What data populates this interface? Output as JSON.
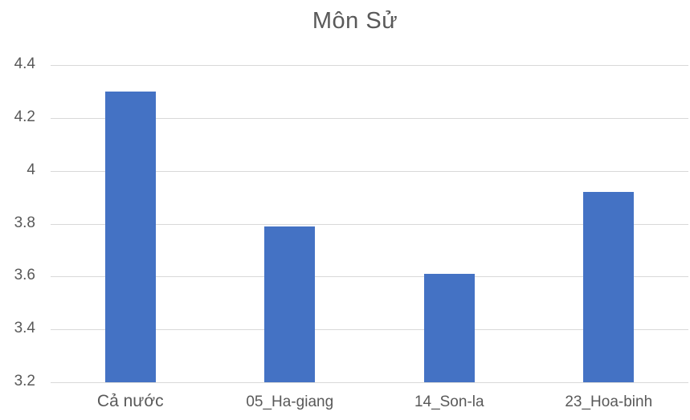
{
  "chart_data": {
    "type": "bar",
    "title": "Môn Sử",
    "categories": [
      "Cả nước",
      "05_Ha-giang",
      "14_Son-la",
      "23_Hoa-binh"
    ],
    "values": [
      4.3,
      3.79,
      3.61,
      3.92
    ],
    "xlabel": "",
    "ylabel": "",
    "ylim": [
      3.2,
      4.4
    ],
    "yticks": [
      "3.2",
      "3.4",
      "3.6",
      "3.8",
      "4",
      "4.2",
      "4.4"
    ],
    "grid": true,
    "legend": null,
    "bar_color": "#4472c4"
  }
}
